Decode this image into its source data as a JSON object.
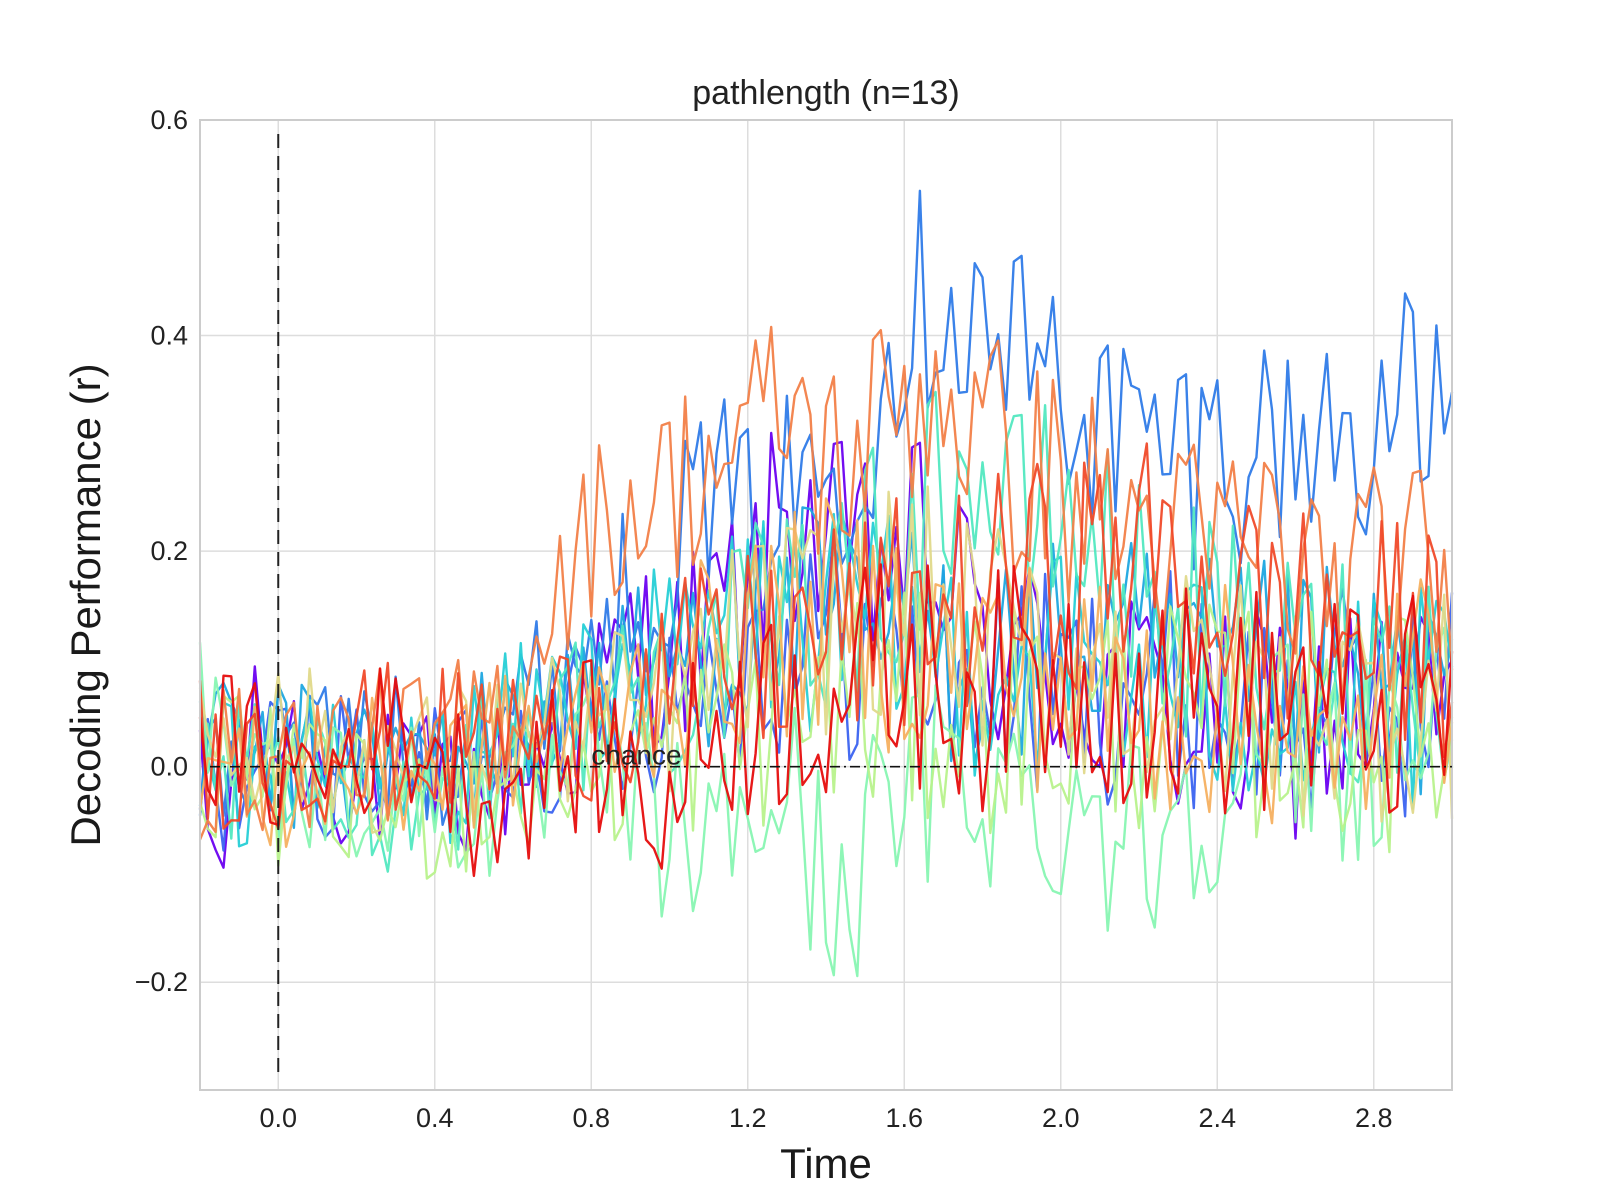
{
  "chart_data": {
    "type": "line",
    "title": "pathlength (n=13)",
    "xlabel": "Time",
    "ylabel": "Decoding Performance (r)",
    "xlim": [
      -0.2,
      3.0
    ],
    "ylim": [
      -0.3,
      0.6
    ],
    "xticks": [
      0.0,
      0.4,
      0.8,
      1.2,
      1.6,
      2.0,
      2.4,
      2.8
    ],
    "xtick_labels": [
      "0.0",
      "0.4",
      "0.8",
      "1.2",
      "1.6",
      "2.0",
      "2.4",
      "2.8"
    ],
    "yticks": [
      -0.2,
      0.0,
      0.2,
      0.4,
      0.6
    ],
    "ytick_labels": [
      "−0.2",
      "0.0",
      "0.2",
      "0.4",
      "0.6"
    ],
    "grid": true,
    "legend": "none",
    "annotation": {
      "text": "chance",
      "x": 0.8,
      "y": 0.0
    },
    "chance_level": 0.0,
    "onset_marker_x": 0.0,
    "x_step": 0.02,
    "series": [
      {
        "color": "#6a00f0",
        "anchors": [
          [
            -0.2,
            -0.03
          ],
          [
            -0.15,
            -0.1
          ],
          [
            -0.1,
            0.02
          ],
          [
            0.0,
            0.03
          ],
          [
            0.1,
            0.0
          ],
          [
            0.3,
            -0.02
          ],
          [
            0.5,
            -0.02
          ],
          [
            0.7,
            0.02
          ],
          [
            0.8,
            0.05
          ],
          [
            0.9,
            0.12
          ],
          [
            1.0,
            0.1
          ],
          [
            1.1,
            0.13
          ],
          [
            1.2,
            0.16
          ],
          [
            1.3,
            0.24
          ],
          [
            1.4,
            0.2
          ],
          [
            1.5,
            0.18
          ],
          [
            1.6,
            0.2
          ],
          [
            1.7,
            0.18
          ],
          [
            1.8,
            0.12
          ],
          [
            1.9,
            0.1
          ],
          [
            2.0,
            0.08
          ],
          [
            2.2,
            0.06
          ],
          [
            2.4,
            0.03
          ],
          [
            2.6,
            0.04
          ],
          [
            2.8,
            0.05
          ],
          [
            3.0,
            0.06
          ]
        ]
      },
      {
        "color": "#3b63f0",
        "anchors": [
          [
            -0.2,
            -0.02
          ],
          [
            0.0,
            0.0
          ],
          [
            0.2,
            0.01
          ],
          [
            0.4,
            0.0
          ],
          [
            0.6,
            0.02
          ],
          [
            0.8,
            0.04
          ],
          [
            1.0,
            0.07
          ],
          [
            1.2,
            0.1
          ],
          [
            1.4,
            0.12
          ],
          [
            1.6,
            0.1
          ],
          [
            1.8,
            0.08
          ],
          [
            2.0,
            0.07
          ],
          [
            2.2,
            0.08
          ],
          [
            2.4,
            0.06
          ],
          [
            2.6,
            0.05
          ],
          [
            2.8,
            0.06
          ],
          [
            3.0,
            0.06
          ]
        ]
      },
      {
        "color": "#2f7be8",
        "anchors": [
          [
            -0.2,
            0.0
          ],
          [
            0.0,
            0.02
          ],
          [
            0.2,
            0.02
          ],
          [
            0.4,
            0.01
          ],
          [
            0.6,
            0.05
          ],
          [
            0.8,
            0.12
          ],
          [
            1.0,
            0.2
          ],
          [
            1.1,
            0.26
          ],
          [
            1.2,
            0.22
          ],
          [
            1.3,
            0.25
          ],
          [
            1.4,
            0.28
          ],
          [
            1.5,
            0.32
          ],
          [
            1.6,
            0.42
          ],
          [
            1.7,
            0.45
          ],
          [
            1.8,
            0.4
          ],
          [
            1.9,
            0.38
          ],
          [
            2.0,
            0.36
          ],
          [
            2.1,
            0.32
          ],
          [
            2.2,
            0.3
          ],
          [
            2.3,
            0.29
          ],
          [
            2.4,
            0.3
          ],
          [
            2.5,
            0.3
          ],
          [
            2.6,
            0.3
          ],
          [
            2.7,
            0.31
          ],
          [
            2.8,
            0.32
          ],
          [
            2.9,
            0.33
          ],
          [
            3.0,
            0.32
          ]
        ]
      },
      {
        "color": "#1ea6e0",
        "anchors": [
          [
            -0.2,
            0.02
          ],
          [
            0.0,
            0.01
          ],
          [
            0.2,
            0.0
          ],
          [
            0.4,
            0.01
          ],
          [
            0.6,
            0.03
          ],
          [
            0.8,
            0.07
          ],
          [
            1.0,
            0.1
          ],
          [
            1.2,
            0.13
          ],
          [
            1.4,
            0.14
          ],
          [
            1.6,
            0.12
          ],
          [
            1.8,
            0.1
          ],
          [
            2.0,
            0.1
          ],
          [
            2.2,
            0.1
          ],
          [
            2.4,
            0.08
          ],
          [
            2.6,
            0.08
          ],
          [
            2.8,
            0.07
          ],
          [
            3.0,
            0.08
          ]
        ]
      },
      {
        "color": "#26cfd6",
        "anchors": [
          [
            -0.2,
            0.0
          ],
          [
            0.0,
            -0.01
          ],
          [
            0.2,
            0.0
          ],
          [
            0.4,
            -0.01
          ],
          [
            0.6,
            0.04
          ],
          [
            0.8,
            0.08
          ],
          [
            1.0,
            0.1
          ],
          [
            1.2,
            0.15
          ],
          [
            1.4,
            0.13
          ],
          [
            1.6,
            0.12
          ],
          [
            1.8,
            0.1
          ],
          [
            2.0,
            0.1
          ],
          [
            2.2,
            0.08
          ],
          [
            2.4,
            0.07
          ],
          [
            2.6,
            0.06
          ],
          [
            2.8,
            0.05
          ],
          [
            3.0,
            0.06
          ]
        ]
      },
      {
        "color": "#52e8c0",
        "anchors": [
          [
            -0.2,
            0.0
          ],
          [
            0.0,
            -0.02
          ],
          [
            0.2,
            -0.03
          ],
          [
            0.4,
            -0.02
          ],
          [
            0.6,
            0.02
          ],
          [
            0.8,
            0.06
          ],
          [
            1.0,
            0.08
          ],
          [
            1.2,
            0.12
          ],
          [
            1.4,
            0.16
          ],
          [
            1.6,
            0.2
          ],
          [
            1.7,
            0.28
          ],
          [
            1.8,
            0.26
          ],
          [
            1.9,
            0.22
          ],
          [
            2.0,
            0.24
          ],
          [
            2.2,
            0.16
          ],
          [
            2.4,
            0.12
          ],
          [
            2.6,
            0.1
          ],
          [
            2.8,
            0.09
          ],
          [
            3.0,
            0.1
          ]
        ]
      },
      {
        "color": "#88f5b2",
        "anchors": [
          [
            -0.2,
            0.06
          ],
          [
            -0.1,
            0.02
          ],
          [
            0.0,
            -0.02
          ],
          [
            0.2,
            -0.02
          ],
          [
            0.4,
            -0.03
          ],
          [
            0.6,
            -0.04
          ],
          [
            0.8,
            0.0
          ],
          [
            1.0,
            -0.06
          ],
          [
            1.1,
            -0.08
          ],
          [
            1.2,
            -0.04
          ],
          [
            1.3,
            -0.02
          ],
          [
            1.4,
            -0.12
          ],
          [
            1.5,
            -0.08
          ],
          [
            1.6,
            -0.03
          ],
          [
            1.8,
            0.0
          ],
          [
            1.9,
            -0.04
          ],
          [
            2.0,
            -0.03
          ],
          [
            2.1,
            -0.04
          ],
          [
            2.2,
            -0.07
          ],
          [
            2.4,
            0.0
          ],
          [
            2.6,
            0.02
          ],
          [
            2.8,
            0.02
          ],
          [
            3.0,
            0.03
          ]
        ]
      },
      {
        "color": "#b8f28c",
        "anchors": [
          [
            -0.2,
            0.01
          ],
          [
            0.0,
            -0.02
          ],
          [
            0.2,
            -0.04
          ],
          [
            0.4,
            -0.04
          ],
          [
            0.6,
            -0.02
          ],
          [
            0.8,
            0.0
          ],
          [
            1.0,
            0.02
          ],
          [
            1.2,
            0.04
          ],
          [
            1.4,
            0.06
          ],
          [
            1.6,
            0.05
          ],
          [
            1.8,
            0.05
          ],
          [
            2.0,
            0.04
          ],
          [
            2.2,
            0.05
          ],
          [
            2.4,
            0.04
          ],
          [
            2.6,
            0.04
          ],
          [
            2.8,
            0.03
          ],
          [
            3.0,
            0.04
          ]
        ]
      },
      {
        "color": "#e0d98a",
        "anchors": [
          [
            -0.2,
            0.04
          ],
          [
            0.0,
            0.03
          ],
          [
            0.2,
            0.01
          ],
          [
            0.4,
            0.0
          ],
          [
            0.6,
            0.03
          ],
          [
            0.8,
            0.04
          ],
          [
            1.0,
            0.06
          ],
          [
            1.2,
            0.12
          ],
          [
            1.4,
            0.14
          ],
          [
            1.6,
            0.16
          ],
          [
            1.8,
            0.12
          ],
          [
            2.0,
            0.1
          ],
          [
            2.2,
            0.08
          ],
          [
            2.4,
            0.07
          ],
          [
            2.6,
            0.06
          ],
          [
            2.8,
            0.06
          ],
          [
            3.0,
            0.06
          ]
        ]
      },
      {
        "color": "#f5b060",
        "anchors": [
          [
            -0.2,
            0.0
          ],
          [
            0.0,
            -0.02
          ],
          [
            0.2,
            -0.01
          ],
          [
            0.4,
            0.0
          ],
          [
            0.6,
            0.02
          ],
          [
            0.8,
            0.04
          ],
          [
            1.0,
            0.08
          ],
          [
            1.2,
            0.12
          ],
          [
            1.4,
            0.14
          ],
          [
            1.6,
            0.12
          ],
          [
            1.8,
            0.1
          ],
          [
            2.0,
            0.08
          ],
          [
            2.2,
            0.06
          ],
          [
            2.4,
            0.06
          ],
          [
            2.6,
            0.05
          ],
          [
            2.7,
            -0.04
          ],
          [
            2.8,
            0.06
          ],
          [
            2.9,
            0.08
          ],
          [
            3.0,
            0.09
          ]
        ]
      },
      {
        "color": "#f28048",
        "anchors": [
          [
            -0.2,
            0.0
          ],
          [
            0.0,
            0.01
          ],
          [
            0.2,
            0.02
          ],
          [
            0.4,
            0.02
          ],
          [
            0.6,
            0.06
          ],
          [
            0.7,
            0.16
          ],
          [
            0.8,
            0.22
          ],
          [
            0.9,
            0.24
          ],
          [
            1.0,
            0.26
          ],
          [
            1.1,
            0.28
          ],
          [
            1.2,
            0.3
          ],
          [
            1.3,
            0.34
          ],
          [
            1.4,
            0.28
          ],
          [
            1.5,
            0.3
          ],
          [
            1.6,
            0.34
          ],
          [
            1.7,
            0.36
          ],
          [
            1.8,
            0.3
          ],
          [
            1.9,
            0.28
          ],
          [
            2.0,
            0.26
          ],
          [
            2.1,
            0.24
          ],
          [
            2.2,
            0.22
          ],
          [
            2.3,
            0.2
          ],
          [
            2.4,
            0.2
          ],
          [
            2.5,
            0.22
          ],
          [
            2.6,
            0.18
          ],
          [
            2.7,
            0.16
          ],
          [
            2.8,
            0.17
          ],
          [
            2.9,
            0.18
          ],
          [
            3.0,
            0.16
          ]
        ]
      },
      {
        "color": "#f04a2a",
        "anchors": [
          [
            -0.2,
            0.02
          ],
          [
            0.0,
            0.0
          ],
          [
            0.2,
            0.03
          ],
          [
            0.4,
            0.02
          ],
          [
            0.6,
            0.03
          ],
          [
            0.8,
            0.05
          ],
          [
            1.0,
            0.08
          ],
          [
            1.2,
            0.1
          ],
          [
            1.4,
            0.12
          ],
          [
            1.6,
            0.14
          ],
          [
            1.8,
            0.16
          ],
          [
            2.0,
            0.18
          ],
          [
            2.2,
            0.2
          ],
          [
            2.4,
            0.16
          ],
          [
            2.6,
            0.14
          ],
          [
            2.8,
            0.12
          ],
          [
            3.0,
            0.12
          ]
        ]
      },
      {
        "color": "#e60d0d",
        "anchors": [
          [
            -0.2,
            0.03
          ],
          [
            0.0,
            0.0
          ],
          [
            0.1,
            -0.01
          ],
          [
            0.2,
            0.02
          ],
          [
            0.3,
            0.03
          ],
          [
            0.4,
            0.02
          ],
          [
            0.5,
            -0.03
          ],
          [
            0.6,
            -0.02
          ],
          [
            0.7,
            0.0
          ],
          [
            0.8,
            0.02
          ],
          [
            0.9,
            -0.01
          ],
          [
            1.0,
            -0.04
          ],
          [
            1.1,
            0.04
          ],
          [
            1.2,
            0.05
          ],
          [
            1.3,
            0.06
          ],
          [
            1.4,
            0.07
          ],
          [
            1.5,
            0.08
          ],
          [
            1.6,
            0.09
          ],
          [
            1.7,
            0.08
          ],
          [
            1.8,
            0.07
          ],
          [
            1.9,
            0.08
          ],
          [
            2.0,
            0.09
          ],
          [
            2.1,
            0.08
          ],
          [
            2.2,
            0.07
          ],
          [
            2.4,
            0.06
          ],
          [
            2.6,
            0.06
          ],
          [
            2.8,
            0.05
          ],
          [
            3.0,
            0.05
          ]
        ]
      }
    ]
  }
}
